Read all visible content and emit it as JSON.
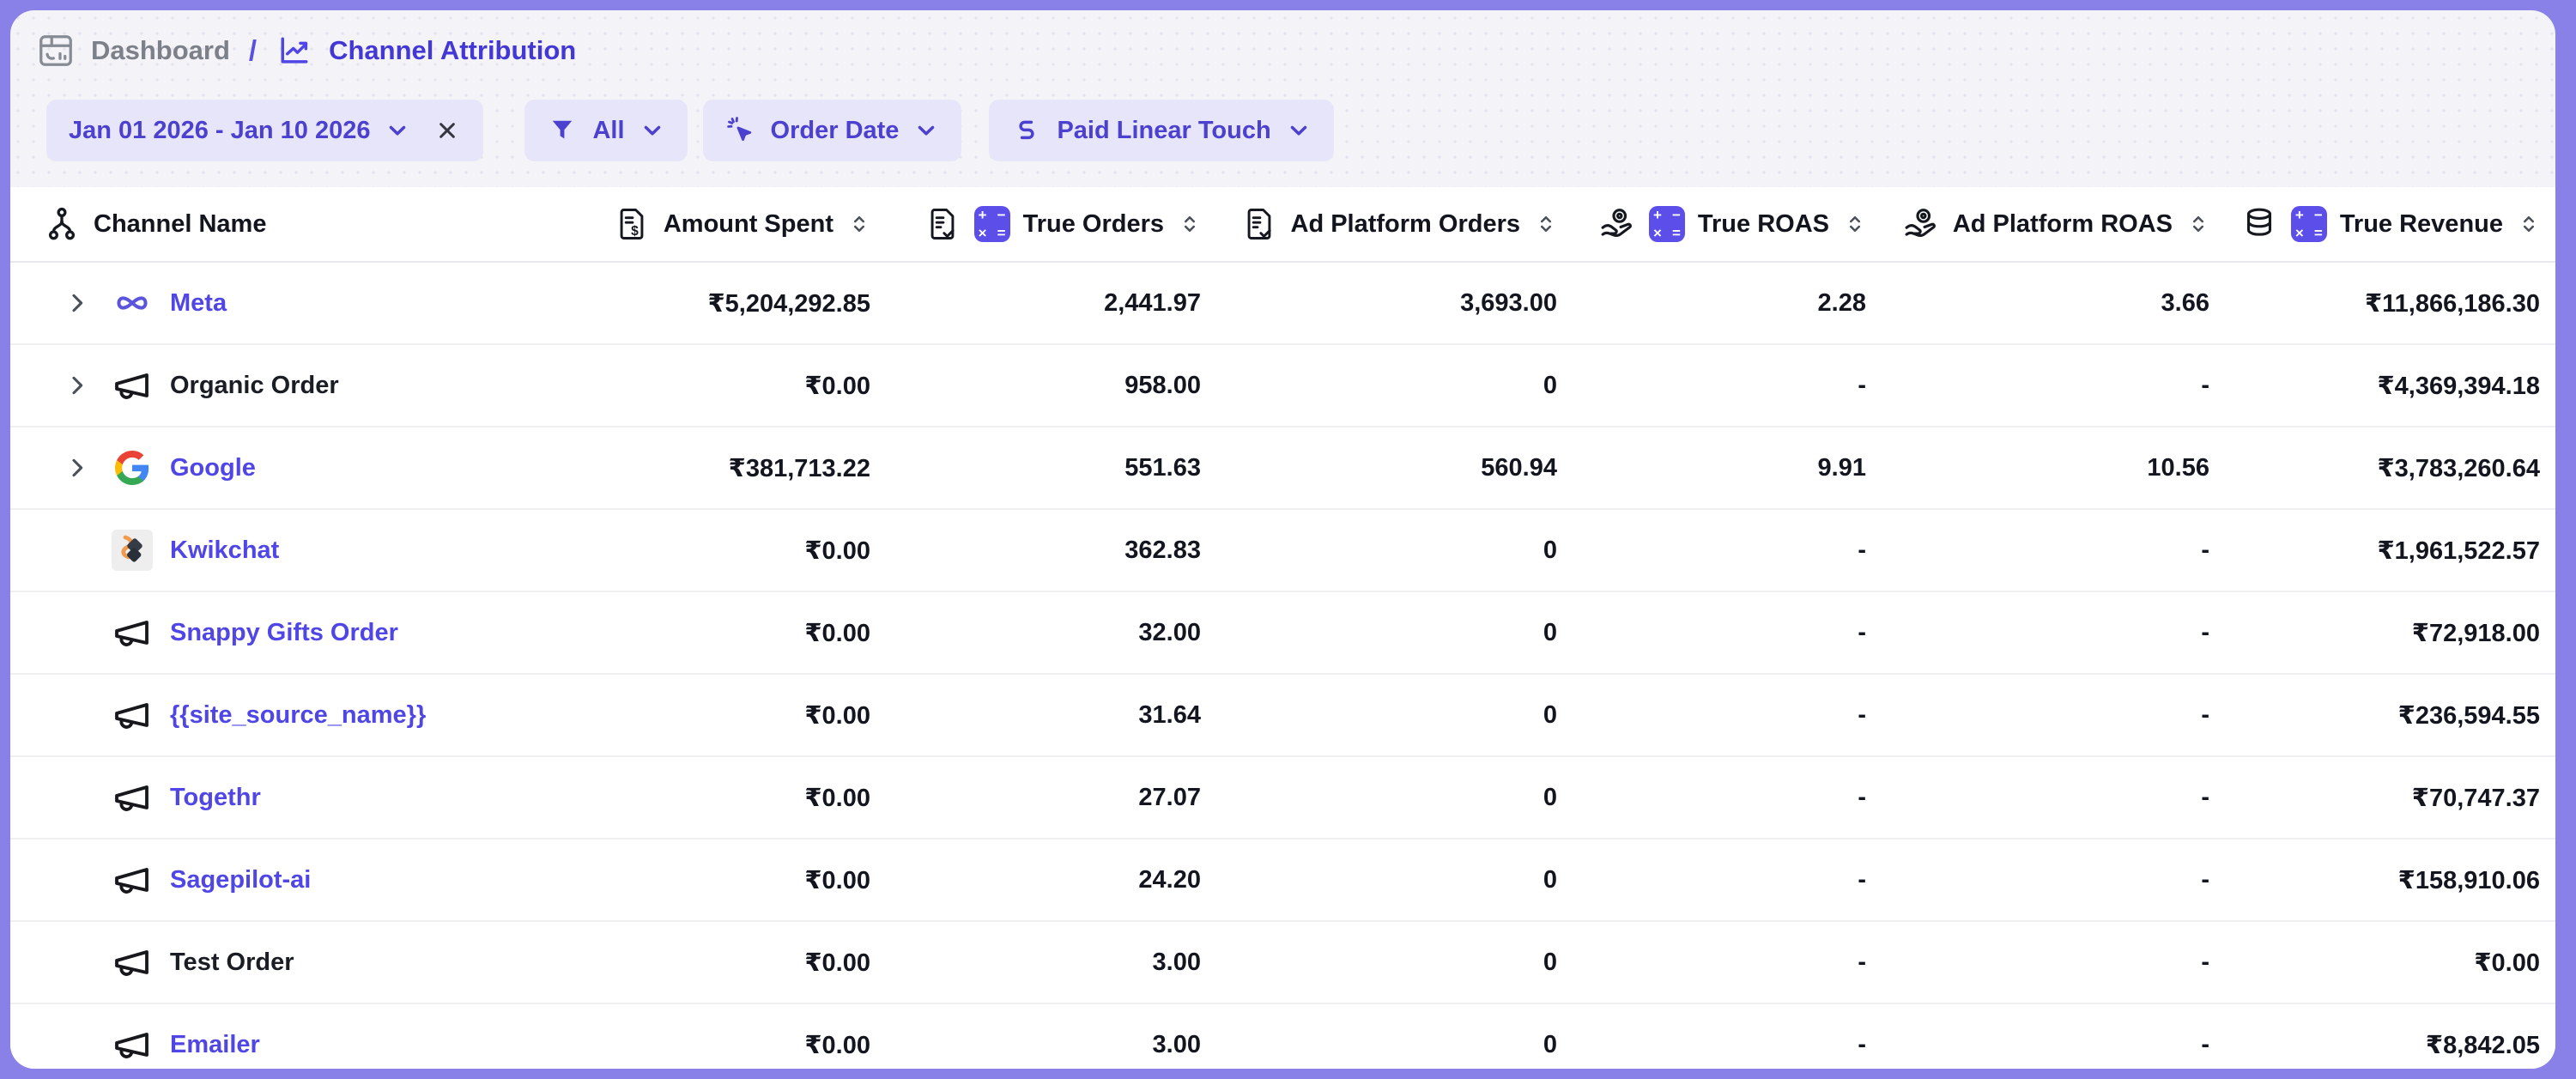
{
  "breadcrumb": {
    "section": "Dashboard",
    "separator": "/",
    "page": "Channel Attribution"
  },
  "filters": {
    "date_range": {
      "label": "Jan 01 2026 - Jan 10 2026"
    },
    "channel_filter": {
      "label": "All"
    },
    "date_type": {
      "label": "Order Date"
    },
    "attribution_model": {
      "label": "Paid Linear Touch"
    }
  },
  "table": {
    "columns": [
      {
        "label": "Channel Name"
      },
      {
        "label": "Amount Spent"
      },
      {
        "label": "True Orders"
      },
      {
        "label": "Ad Platform Orders"
      },
      {
        "label": "True ROAS"
      },
      {
        "label": "Ad Platform ROAS"
      },
      {
        "label": "True Revenue"
      }
    ],
    "rows": [
      {
        "name": "Meta",
        "icon": "meta-logo",
        "link": true,
        "expandable": true,
        "values": [
          "₹5,204,292.85",
          "2,441.97",
          "3,693.00",
          "2.28",
          "3.66",
          "₹11,866,186.30"
        ]
      },
      {
        "name": "Organic Order",
        "icon": "megaphone-icon",
        "link": false,
        "expandable": true,
        "values": [
          "₹0.00",
          "958.00",
          "0",
          "-",
          "-",
          "₹4,369,394.18"
        ]
      },
      {
        "name": "Google",
        "icon": "google-logo",
        "link": true,
        "expandable": true,
        "values": [
          "₹381,713.22",
          "551.63",
          "560.94",
          "9.91",
          "10.56",
          "₹3,783,260.64"
        ]
      },
      {
        "name": "Kwikchat",
        "icon": "kwikchat-logo",
        "link": true,
        "expandable": false,
        "values": [
          "₹0.00",
          "362.83",
          "0",
          "-",
          "-",
          "₹1,961,522.57"
        ]
      },
      {
        "name": "Snappy Gifts Order",
        "icon": "megaphone-icon",
        "link": true,
        "expandable": false,
        "values": [
          "₹0.00",
          "32.00",
          "0",
          "-",
          "-",
          "₹72,918.00"
        ]
      },
      {
        "name": "{{site_source_name}}",
        "icon": "megaphone-icon",
        "link": true,
        "expandable": false,
        "values": [
          "₹0.00",
          "31.64",
          "0",
          "-",
          "-",
          "₹236,594.55"
        ]
      },
      {
        "name": "Togethr",
        "icon": "megaphone-icon",
        "link": true,
        "expandable": false,
        "values": [
          "₹0.00",
          "27.07",
          "0",
          "-",
          "-",
          "₹70,747.37"
        ]
      },
      {
        "name": "Sagepilot-ai",
        "icon": "megaphone-icon",
        "link": true,
        "expandable": false,
        "values": [
          "₹0.00",
          "24.20",
          "0",
          "-",
          "-",
          "₹158,910.06"
        ]
      },
      {
        "name": "Test Order",
        "icon": "megaphone-icon",
        "link": false,
        "expandable": false,
        "values": [
          "₹0.00",
          "3.00",
          "0",
          "-",
          "-",
          "₹0.00"
        ]
      },
      {
        "name": "Emailer",
        "icon": "megaphone-icon",
        "link": true,
        "expandable": false,
        "values": [
          "₹0.00",
          "3.00",
          "0",
          "-",
          "-",
          "₹8,842.05"
        ]
      }
    ],
    "calculator_badge_symbols": [
      "+",
      "−",
      "×",
      "="
    ]
  },
  "colors": {
    "frame": "#8a81e8",
    "accent": "#4f46e5",
    "pill_background": "#e7e5f9",
    "calculator_badge": "#5b4ee9",
    "link": "#4f46e5",
    "table_background": "#ffffff"
  }
}
